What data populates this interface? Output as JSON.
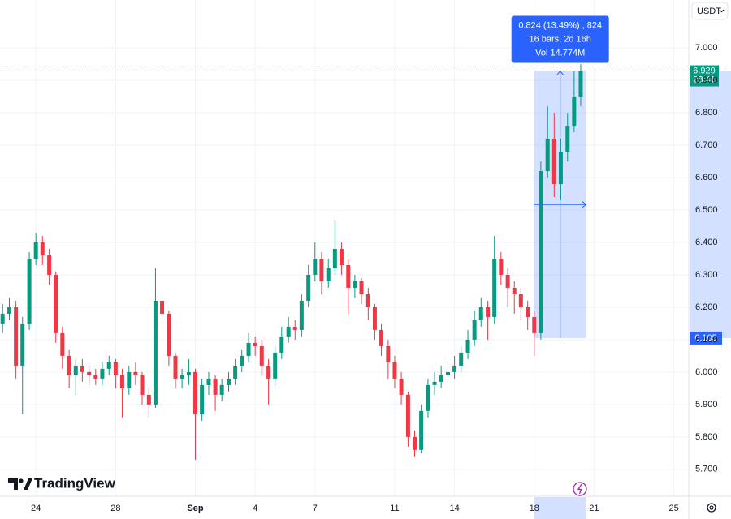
{
  "chart_data": {
    "type": "candlestick",
    "currency": "USDT",
    "up_color": "#089981",
    "down_color": "#f23645",
    "xlim": [
      -1.8,
      32.75
    ],
    "ylim": [
      5.617,
      7.148
    ],
    "grid": true,
    "xticks": [
      {
        "value": 0,
        "label": "24"
      },
      {
        "value": 4,
        "label": "28"
      },
      {
        "value": 8,
        "label": "Sep"
      },
      {
        "value": 11,
        "label": "4"
      },
      {
        "value": 14,
        "label": "7"
      },
      {
        "value": 18,
        "label": "11"
      },
      {
        "value": 21,
        "label": "14"
      },
      {
        "value": 25,
        "label": "18"
      },
      {
        "value": 28,
        "label": "21"
      },
      {
        "value": 32,
        "label": "25"
      }
    ],
    "yticks": [
      {
        "value": 5.7,
        "label": "5.700"
      },
      {
        "value": 5.8,
        "label": "5.800"
      },
      {
        "value": 5.9,
        "label": "5.900"
      },
      {
        "value": 6.0,
        "label": "6.000"
      },
      {
        "value": 6.1,
        "label": "6.100"
      },
      {
        "value": 6.2,
        "label": "6.200"
      },
      {
        "value": 6.3,
        "label": "6.300"
      },
      {
        "value": 6.4,
        "label": "6.400"
      },
      {
        "value": 6.5,
        "label": "6.500"
      },
      {
        "value": 6.6,
        "label": "6.600"
      },
      {
        "value": 6.7,
        "label": "6.700"
      },
      {
        "value": 6.8,
        "label": "6.800"
      },
      {
        "value": 6.9,
        "label": "6.900"
      },
      {
        "value": 7.0,
        "label": "7.000"
      }
    ],
    "x": [
      -1.67,
      -1.33,
      -1,
      -0.67,
      -0.33,
      0,
      0.33,
      0.67,
      1,
      1.33,
      1.67,
      2,
      2.33,
      2.67,
      3,
      3.33,
      3.67,
      4,
      4.33,
      4.67,
      5,
      5.33,
      5.67,
      6,
      6.33,
      6.67,
      7,
      7.33,
      7.67,
      8,
      8.33,
      8.67,
      9,
      9.33,
      9.67,
      10,
      10.33,
      10.67,
      11,
      11.33,
      11.67,
      12,
      12.33,
      12.67,
      13,
      13.33,
      13.67,
      14,
      14.33,
      14.67,
      15,
      15.33,
      15.67,
      16,
      16.33,
      16.67,
      17,
      17.33,
      17.67,
      18,
      18.33,
      18.67,
      19,
      19.33,
      19.67,
      20,
      20.33,
      20.67,
      21,
      21.33,
      21.67,
      22,
      22.33,
      22.67,
      23,
      23.33,
      23.67,
      24,
      24.33,
      24.67,
      25,
      25.33,
      25.67,
      26,
      26.33,
      26.67,
      27,
      27.33
    ],
    "open": [
      6.15,
      6.18,
      6.2,
      6.02,
      6.15,
      6.35,
      6.4,
      6.36,
      6.3,
      6.12,
      6.05,
      5.99,
      6.02,
      6.0,
      5.99,
      5.98,
      6.01,
      6.03,
      5.99,
      5.95,
      6.0,
      5.99,
      5.93,
      5.9,
      6.22,
      6.18,
      6.05,
      5.98,
      5.99,
      6.0,
      5.87,
      5.96,
      5.98,
      5.93,
      5.96,
      5.98,
      6.02,
      6.05,
      6.09,
      6.08,
      6.02,
      5.98,
      6.06,
      6.11,
      6.14,
      6.13,
      6.22,
      6.3,
      6.35,
      6.28,
      6.32,
      6.38,
      6.33,
      6.26,
      6.28,
      6.24,
      6.2,
      6.13,
      6.08,
      6.03,
      5.98,
      5.93,
      5.8,
      5.76,
      5.88,
      5.96,
      5.97,
      5.99,
      6.0,
      6.02,
      6.06,
      6.1,
      6.16,
      6.2,
      6.17,
      6.35,
      6.3,
      6.26,
      6.24,
      6.2,
      6.17,
      6.12,
      6.62,
      6.72,
      6.58,
      6.68,
      6.76,
      6.85
    ],
    "high": [
      6.21,
      6.23,
      6.22,
      6.17,
      6.37,
      6.43,
      6.42,
      6.38,
      6.31,
      6.14,
      6.07,
      6.04,
      6.04,
      6.02,
      6.01,
      6.03,
      6.05,
      6.04,
      6.01,
      6.02,
      6.03,
      6.0,
      5.95,
      6.32,
      6.24,
      6.19,
      6.06,
      6.01,
      6.04,
      6.01,
      5.98,
      6.0,
      5.99,
      5.98,
      6.0,
      6.04,
      6.07,
      6.12,
      6.11,
      6.1,
      6.04,
      6.08,
      6.14,
      6.17,
      6.16,
      6.24,
      6.33,
      6.4,
      6.37,
      6.35,
      6.47,
      6.4,
      6.35,
      6.3,
      6.29,
      6.26,
      6.21,
      6.15,
      6.1,
      6.05,
      6.0,
      5.94,
      5.82,
      5.9,
      5.98,
      6.0,
      6.02,
      6.03,
      6.05,
      6.08,
      6.13,
      6.19,
      6.23,
      6.22,
      6.42,
      6.37,
      6.32,
      6.28,
      6.26,
      6.22,
      6.19,
      6.65,
      6.82,
      6.8,
      6.72,
      6.8,
      6.93,
      6.95
    ],
    "low": [
      6.12,
      6.16,
      5.98,
      5.87,
      6.13,
      6.33,
      6.33,
      6.27,
      6.09,
      6.01,
      5.95,
      5.93,
      5.97,
      5.96,
      5.96,
      5.96,
      5.99,
      5.95,
      5.86,
      5.93,
      5.96,
      5.9,
      5.86,
      5.89,
      6.14,
      6.02,
      5.95,
      5.95,
      5.96,
      5.73,
      5.85,
      5.93,
      5.88,
      5.91,
      5.94,
      5.96,
      6.0,
      6.03,
      6.05,
      5.99,
      5.9,
      5.96,
      6.04,
      6.09,
      6.1,
      6.11,
      6.2,
      6.28,
      6.24,
      6.26,
      6.3,
      6.3,
      6.18,
      6.23,
      6.21,
      6.16,
      6.1,
      6.05,
      5.98,
      5.95,
      5.9,
      5.77,
      5.74,
      5.75,
      5.86,
      5.93,
      5.95,
      5.97,
      5.98,
      6.0,
      6.04,
      6.08,
      6.14,
      6.1,
      6.15,
      6.27,
      6.2,
      6.18,
      6.16,
      6.13,
      6.05,
      6.1,
      6.6,
      6.54,
      6.53,
      6.65,
      6.74,
      6.82
    ],
    "close": [
      6.18,
      6.2,
      6.02,
      6.15,
      6.35,
      6.4,
      6.36,
      6.3,
      6.12,
      6.05,
      5.99,
      6.02,
      6.0,
      5.99,
      5.98,
      6.01,
      6.03,
      5.99,
      5.95,
      6.0,
      5.99,
      5.93,
      5.9,
      6.22,
      6.18,
      6.05,
      5.98,
      5.99,
      6.0,
      5.87,
      5.96,
      5.98,
      5.93,
      5.96,
      5.98,
      6.02,
      6.05,
      6.09,
      6.08,
      6.02,
      5.98,
      6.06,
      6.11,
      6.14,
      6.13,
      6.22,
      6.3,
      6.35,
      6.28,
      6.32,
      6.38,
      6.33,
      6.26,
      6.28,
      6.24,
      6.2,
      6.13,
      6.08,
      6.03,
      5.98,
      5.93,
      5.8,
      5.76,
      5.88,
      5.96,
      5.97,
      5.99,
      6.0,
      6.02,
      6.06,
      6.1,
      6.16,
      6.2,
      6.17,
      6.35,
      6.3,
      6.26,
      6.24,
      6.2,
      6.17,
      6.12,
      6.62,
      6.72,
      6.58,
      6.68,
      6.76,
      6.85,
      6.929
    ],
    "countdown": "28:41",
    "measure": {
      "start": 6.105,
      "end": 6.929,
      "x_start": 25,
      "x_end": 27.6,
      "lines": [
        "0.824 (13.49%) , 824",
        "16 bars, 2d 16h",
        "Vol 14.774M"
      ]
    },
    "brand": "TradingView"
  }
}
